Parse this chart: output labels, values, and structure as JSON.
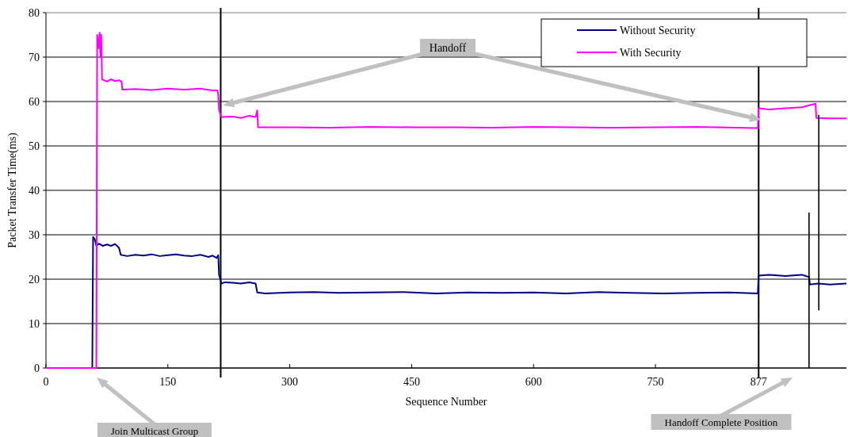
{
  "chart_data": {
    "type": "line",
    "xlabel": "Sequence Number",
    "ylabel": "Packet Transfer Time(ms)",
    "xlim": [
      0,
      985
    ],
    "ylim": [
      0,
      80
    ],
    "xticks": [
      0,
      150,
      300,
      450,
      600,
      750,
      877
    ],
    "yticks": [
      0,
      10,
      20,
      30,
      40,
      50,
      60,
      70,
      80
    ],
    "grid": "y",
    "legend": "top right",
    "line_style": "solid",
    "ref_lines": [
      {
        "axis": "x",
        "value": 215,
        "color": "#000000"
      },
      {
        "axis": "x",
        "value": 877,
        "color": "#000000"
      }
    ],
    "annotations": [
      "Handoff",
      "Join Multicast Group",
      "Handoff Complete Position"
    ],
    "series": [
      {
        "name": "Without Security",
        "color": "#000080",
        "x": [
          0,
          57,
          58,
          60,
          62,
          65,
          70,
          75,
          80,
          85,
          88,
          90,
          92,
          100,
          110,
          120,
          130,
          140,
          150,
          160,
          170,
          180,
          190,
          200,
          205,
          210,
          212,
          213,
          216,
          220,
          230,
          240,
          250,
          258,
          260,
          270,
          300,
          330,
          360,
          400,
          440,
          480,
          520,
          560,
          600,
          640,
          680,
          720,
          760,
          800,
          840,
          876,
          877,
          890,
          910,
          930,
          939,
          940,
          950,
          965,
          985
        ],
        "values": [
          0,
          0,
          29.5,
          29,
          27.5,
          28,
          27.5,
          27.8,
          27.5,
          27.9,
          27.4,
          27,
          25.5,
          25.2,
          25.5,
          25.3,
          25.6,
          25.2,
          25.4,
          25.6,
          25.3,
          25.2,
          25.5,
          25,
          25.3,
          24.8,
          25.4,
          21,
          19,
          19.3,
          19.2,
          19,
          19.3,
          19,
          17,
          16.8,
          17,
          17.1,
          16.9,
          17,
          17.1,
          16.8,
          17,
          16.9,
          17,
          16.8,
          17.1,
          16.9,
          16.8,
          16.9,
          17,
          16.8,
          20.8,
          21,
          20.7,
          21,
          20.5,
          18.8,
          19,
          18.8,
          19
        ]
      },
      {
        "name": "With Security",
        "color": "#ff00ff",
        "x": [
          0,
          62,
          63,
          65,
          66,
          67,
          68,
          69,
          75,
          80,
          85,
          90,
          93,
          94,
          110,
          130,
          150,
          170,
          190,
          205,
          211,
          212,
          213,
          216,
          230,
          240,
          250,
          258,
          260,
          261,
          300,
          350,
          400,
          450,
          500,
          550,
          600,
          650,
          700,
          750,
          800,
          850,
          876,
          877,
          890,
          910,
          930,
          947,
          948,
          965,
          985
        ],
        "values": [
          0,
          0,
          75,
          72,
          75.5,
          70,
          75,
          65,
          64.5,
          65,
          64.6,
          64.8,
          64.5,
          62.7,
          62.8,
          62.6,
          62.9,
          62.7,
          62.9,
          62.5,
          62.5,
          61.5,
          58,
          56.5,
          56.6,
          56.3,
          56.8,
          56.5,
          58,
          54.2,
          54.2,
          54.1,
          54.3,
          54.2,
          54.2,
          54.1,
          54.3,
          54.2,
          54.1,
          54.2,
          54.3,
          54.1,
          54,
          58.5,
          58.2,
          58.5,
          58.7,
          59.5,
          56.3,
          56.2,
          56.2
        ]
      },
      {
        "type": "line",
        "color": "#000000",
        "x": [
          939,
          939
        ],
        "values": [
          0,
          35
        ]
      },
      {
        "type": "line",
        "color": "#000000",
        "x": [
          951,
          951
        ],
        "values": [
          13,
          57
        ]
      }
    ]
  }
}
